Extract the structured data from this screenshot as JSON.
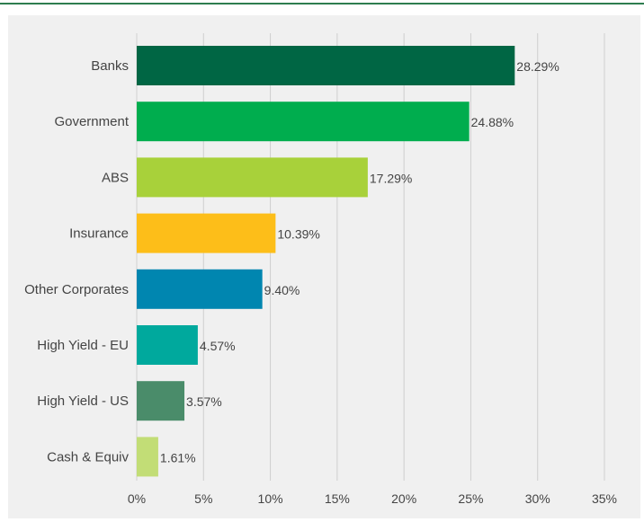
{
  "chart_data": {
    "type": "bar",
    "orientation": "horizontal",
    "categories": [
      "Banks",
      "Government",
      "ABS",
      "Insurance",
      "Other Corporates",
      "High Yield - EU",
      "High Yield - US",
      "Cash & Equiv"
    ],
    "values": [
      28.29,
      24.88,
      17.29,
      10.39,
      9.4,
      4.57,
      3.57,
      1.61
    ],
    "value_labels": [
      "28.29%",
      "24.88%",
      "17.29%",
      "10.39%",
      "9.40%",
      "4.57%",
      "3.57%",
      "1.61%"
    ],
    "colors": [
      "#006644",
      "#00ad4e",
      "#a8d13a",
      "#fdbe19",
      "#0086b0",
      "#00a99d",
      "#4a8c6a",
      "#c2dd76"
    ],
    "xlim": [
      0,
      35
    ],
    "xticks": [
      0,
      5,
      10,
      15,
      20,
      25,
      30,
      35
    ],
    "xtick_labels": [
      "0%",
      "5%",
      "10%",
      "15%",
      "20%",
      "25%",
      "30%",
      "35%"
    ],
    "grid": true,
    "legend": "none",
    "title": "",
    "xlabel": "",
    "ylabel": ""
  },
  "colors": {
    "top_rule": "#2e7d4f",
    "panel_background": "#f0f0f0",
    "grid": "#cfcfcf",
    "text": "#444444"
  }
}
